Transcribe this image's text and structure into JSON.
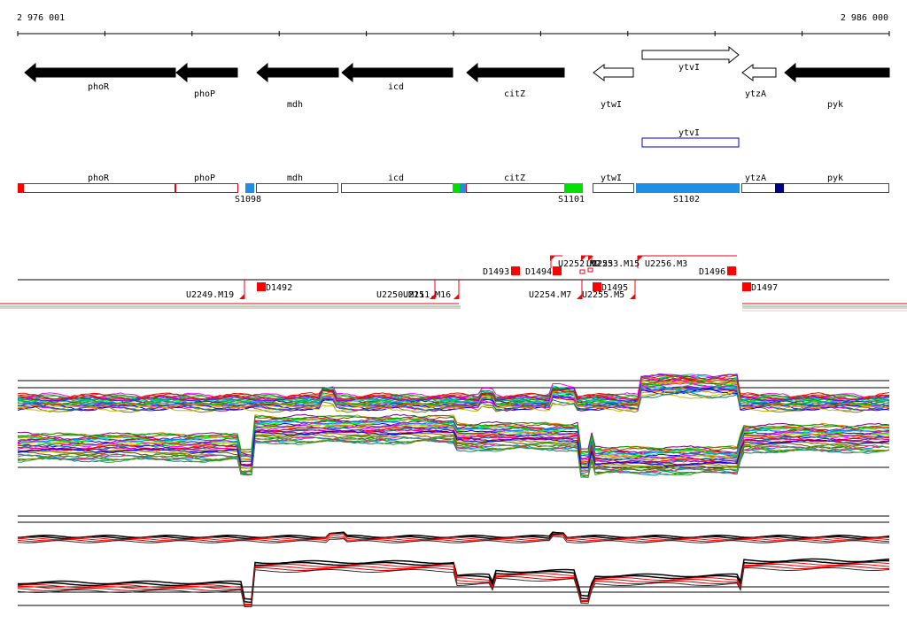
{
  "ruler": {
    "start_label": "2 976 001",
    "end_label": "2 986 000"
  },
  "genes": [
    {
      "name": "phoR",
      "strand": "-",
      "fill": "black"
    },
    {
      "name": "phoP",
      "strand": "-",
      "fill": "black"
    },
    {
      "name": "mdh",
      "strand": "-",
      "fill": "black"
    },
    {
      "name": "icd",
      "strand": "-",
      "fill": "black"
    },
    {
      "name": "citZ",
      "strand": "-",
      "fill": "black"
    },
    {
      "name": "ytwI",
      "strand": "-",
      "fill": "white"
    },
    {
      "name": "ytvI",
      "strand": "+",
      "fill": "white"
    },
    {
      "name": "ytzA",
      "strand": "-",
      "fill": "white"
    },
    {
      "name": "pyk",
      "strand": "-",
      "fill": "black"
    }
  ],
  "selected_gene": {
    "name": "ytvI"
  },
  "segment_track": {
    "genes": [
      "phoR",
      "phoP",
      "mdh",
      "icd",
      "citZ",
      "ytwI",
      "ytzA",
      "pyk"
    ],
    "regions": [
      "S1098",
      "S1101",
      "S1102"
    ]
  },
  "upstream_labels": [
    "D1493",
    "D1494",
    "U2252.M2",
    "U2253",
    "U2253.M15",
    "U2256.M3",
    "D1496"
  ],
  "downstream_labels": [
    "U2249.M19",
    "D1492",
    "U2250.M11",
    "U2251.M16",
    "U2254.M7",
    "D1495",
    "U2255.M5",
    "D1497"
  ],
  "colors": {
    "gene_fill": "#000000",
    "segment_outline": "#e8001c",
    "marker_red": "#ff0000",
    "region_blue": "#1f8fe5",
    "region_green": "#00e000",
    "navy": "#000080",
    "selected_outline": "#0000cc"
  }
}
